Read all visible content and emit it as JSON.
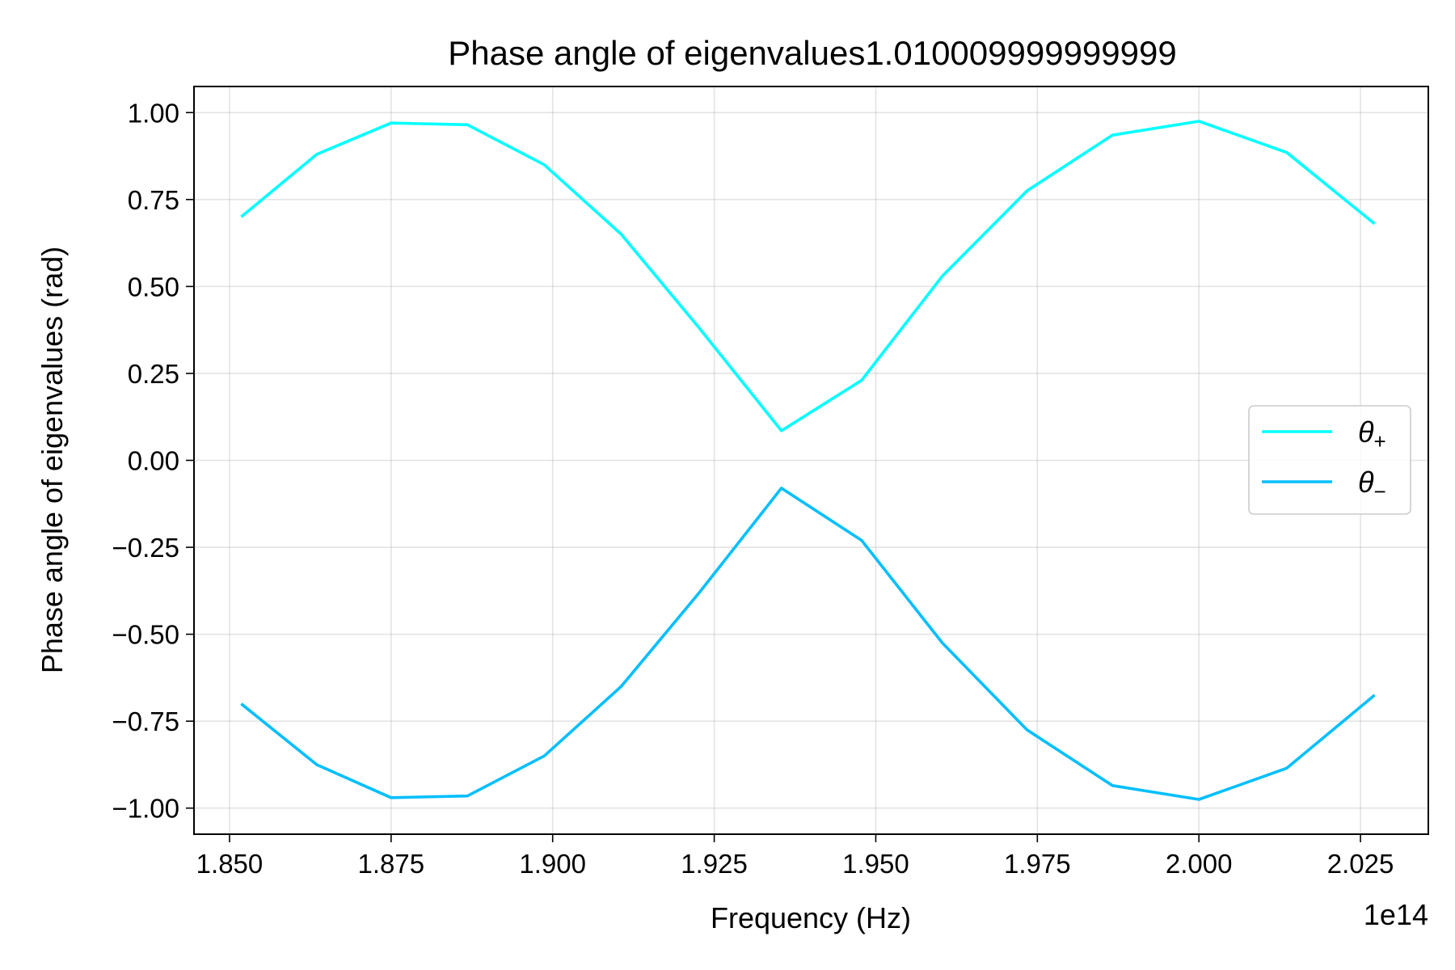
{
  "chart_data": {
    "type": "line",
    "title": "Phase angle of eigenvalues1.010009999999999",
    "xlabel": "Frequency (Hz)",
    "ylabel": "Phase angle of eigenvalues (rad)",
    "x_offset_label": "1e14",
    "xlim": [
      1.8445,
      2.0355
    ],
    "ylim": [
      -1.075,
      1.075
    ],
    "x_ticks": [
      1.85,
      1.875,
      1.9,
      1.925,
      1.95,
      1.975,
      2.0,
      2.025
    ],
    "x_tick_labels": [
      "1.850",
      "1.875",
      "1.900",
      "1.925",
      "1.950",
      "1.975",
      "2.000",
      "2.025"
    ],
    "y_ticks": [
      1.0,
      0.75,
      0.5,
      0.25,
      0.0,
      -0.25,
      -0.5,
      -0.75,
      -1.0
    ],
    "y_tick_labels": [
      "1.00",
      "0.75",
      "0.50",
      "0.25",
      "0.00",
      "−0.25",
      "−0.50",
      "−0.75",
      "−1.00"
    ],
    "grid": true,
    "legend_position": "center-right",
    "x": [
      1.8518,
      1.8635,
      1.875,
      1.8868,
      1.8987,
      1.9106,
      1.9227,
      1.9354,
      1.9478,
      1.9603,
      1.9734,
      1.9866,
      2.0,
      2.0136,
      2.0272
    ],
    "series": [
      {
        "name": "θ",
        "subscript": "+",
        "color": "#00ffff",
        "values": [
          0.7,
          0.88,
          0.97,
          0.965,
          0.85,
          0.65,
          0.38,
          0.085,
          0.23,
          0.53,
          0.775,
          0.935,
          0.975,
          0.885,
          0.68
        ]
      },
      {
        "name": "θ",
        "subscript": "−",
        "color": "#00bfff",
        "values": [
          -0.7,
          -0.875,
          -0.97,
          -0.965,
          -0.85,
          -0.65,
          -0.38,
          -0.08,
          -0.23,
          -0.525,
          -0.775,
          -0.935,
          -0.975,
          -0.885,
          -0.675
        ]
      }
    ]
  }
}
